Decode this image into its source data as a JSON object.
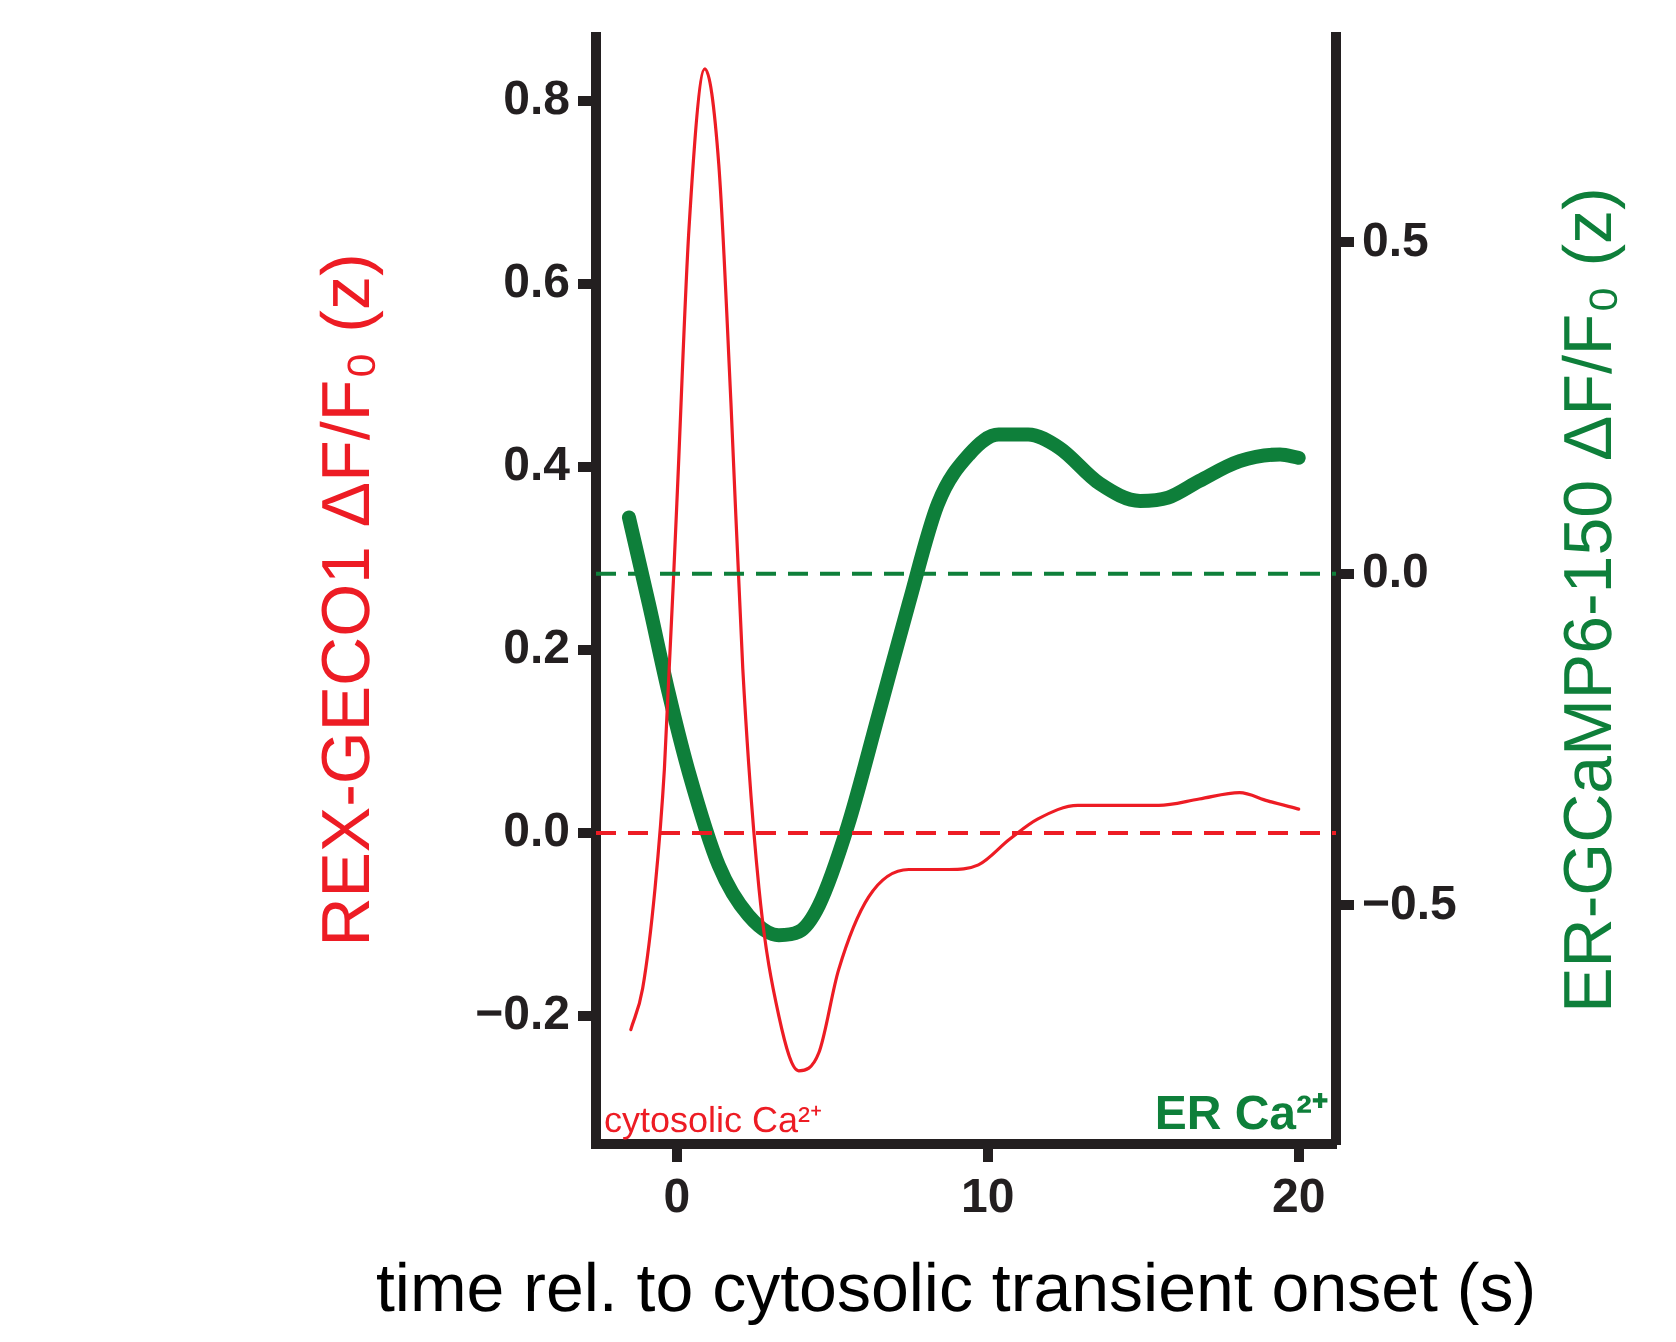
{
  "chart_data": {
    "type": "line",
    "xlabel": "time rel. to cytosolic transient onset (s)",
    "ylabel": "REX-GECO1 ΔF/F₀ (z)",
    "y2label": "ER-GCaMP6-150 ΔF/F₀ (z)",
    "xlim": [
      -2.6,
      21.2
    ],
    "xticks": [
      0,
      10,
      20
    ],
    "ylim": [
      -0.34,
      0.87
    ],
    "yticks": [
      {
        "value": -0.2,
        "label": "−0.2"
      },
      {
        "value": 0,
        "label": "0.0"
      },
      {
        "value": 0.2,
        "label": "0.2"
      },
      {
        "value": 0.4,
        "label": "0.4"
      },
      {
        "value": 0.6,
        "label": "0.6"
      },
      {
        "value": 0.8,
        "label": "0.8"
      }
    ],
    "y2lim": [
      -0.86,
      0.81
    ],
    "y2ticks": [
      {
        "value": -0.5,
        "label": "−0.5"
      },
      {
        "value": 0,
        "label": "0.0"
      },
      {
        "value": 0.5,
        "label": "0.5"
      }
    ],
    "grid": false,
    "legend": false,
    "marker": "none",
    "series": [
      {
        "color": "#ed1c24",
        "x": [
          -1.48,
          -1.1,
          -0.7,
          -0.4,
          0,
          0.39,
          0.9,
          1.35,
          1.74,
          2.12,
          2.64,
          3.28,
          3.92,
          4.57,
          5.2,
          6.17,
          7.46,
          8.75,
          9.7,
          10.7,
          11.6,
          12.9,
          14.2,
          15.5,
          16.8,
          18.1,
          19.0,
          20.0
        ],
        "values": [
          -0.215,
          -0.17,
          -0.06,
          0.07,
          0.36,
          0.66,
          0.835,
          0.73,
          0.47,
          0.18,
          -0.06,
          -0.2,
          -0.26,
          -0.24,
          -0.15,
          -0.07,
          -0.04,
          -0.04,
          -0.035,
          -0.007,
          0.015,
          0.03,
          0.03,
          0.03,
          0.037,
          0.044,
          0.035,
          0.026
        ]
      },
      {
        "color": "#0e7f3a",
        "axis": "y2",
        "x": [
          -1.54,
          -0.9,
          -0.26,
          0.39,
          1.35,
          2.3,
          3.28,
          3.92,
          4.57,
          5.5,
          6.5,
          7.46,
          8.4,
          9.4,
          10.35,
          11.3,
          12.3,
          13.6,
          14.9,
          15.8,
          16.8,
          18.1,
          19.4,
          20
        ],
        "values": [
          0.085,
          -0.045,
          -0.18,
          -0.3,
          -0.44,
          -0.515,
          -0.545,
          -0.54,
          -0.5,
          -0.38,
          -0.21,
          -0.045,
          0.106,
          0.18,
          0.21,
          0.21,
          0.19,
          0.136,
          0.11,
          0.115,
          0.14,
          0.17,
          0.18,
          0.175
        ]
      }
    ],
    "ref_lines": [
      {
        "axis": "y",
        "value": 0,
        "color": "#ed1c24",
        "line_style": "dashed"
      },
      {
        "axis": "y2",
        "value": 0,
        "color": "#0e7f3a",
        "line_style": "dashed"
      }
    ],
    "annotations": [
      "cytosolic Ca²⁺",
      "ER Ca²⁺"
    ]
  }
}
